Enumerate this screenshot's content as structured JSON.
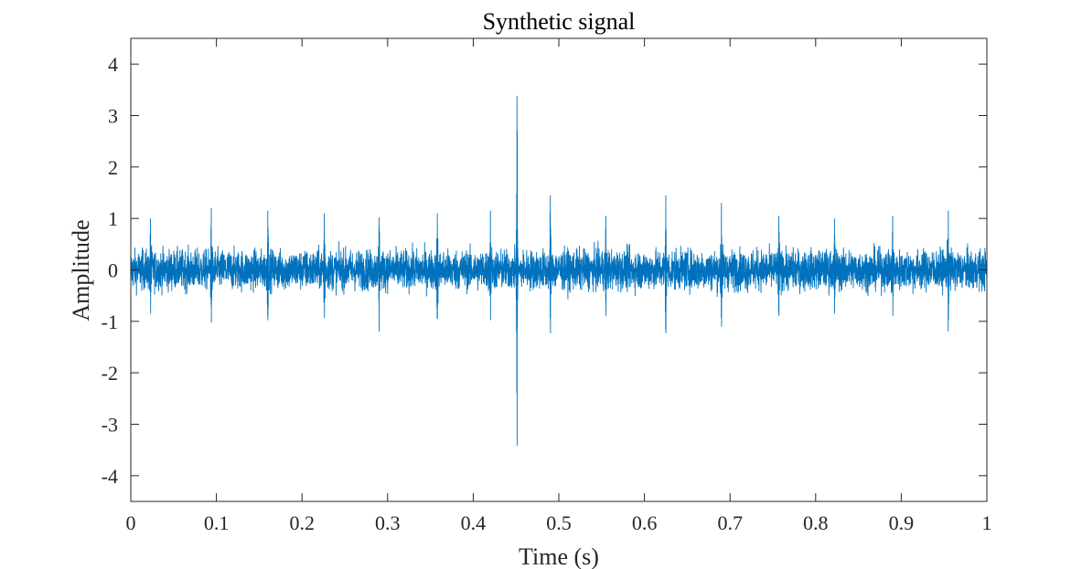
{
  "chart_data": {
    "type": "line",
    "title": "Synthetic signal",
    "xlabel": "Time (s)",
    "ylabel": "Amplitude",
    "xlim": [
      0,
      1
    ],
    "ylim": [
      -4.5,
      4.5
    ],
    "xticks": [
      0,
      0.1,
      0.2,
      0.3,
      0.4,
      0.5,
      0.6,
      0.7,
      0.8,
      0.9,
      1
    ],
    "xtick_labels": [
      "0",
      "0.1",
      "0.2",
      "0.3",
      "0.4",
      "0.5",
      "0.6",
      "0.7",
      "0.8",
      "0.9",
      "1"
    ],
    "yticks": [
      4,
      3,
      2,
      1,
      0,
      -1,
      -2,
      -3,
      -4
    ],
    "ytick_labels": [
      "4",
      "3",
      "2",
      "1",
      "0",
      "-1",
      "-2",
      "-3",
      "-4"
    ],
    "grid": false,
    "box": true,
    "series": [
      {
        "color": "#0072bd",
        "noise_band": [
          -0.45,
          0.45
        ],
        "periodic_spikes": {
          "times": [
            0.023,
            0.094,
            0.16,
            0.226,
            0.29,
            0.358,
            0.42,
            0.49,
            0.555,
            0.625,
            0.69,
            0.757,
            0.822,
            0.89,
            0.955
          ],
          "peak_values": [
            1.0,
            1.2,
            1.15,
            1.1,
            -1.2,
            1.1,
            1.15,
            1.45,
            1.05,
            1.45,
            1.3,
            1.05,
            1.0,
            1.05,
            1.15
          ]
        },
        "burst": {
          "time": 0.451,
          "max": 3.38,
          "min": -3.42
        }
      }
    ]
  }
}
